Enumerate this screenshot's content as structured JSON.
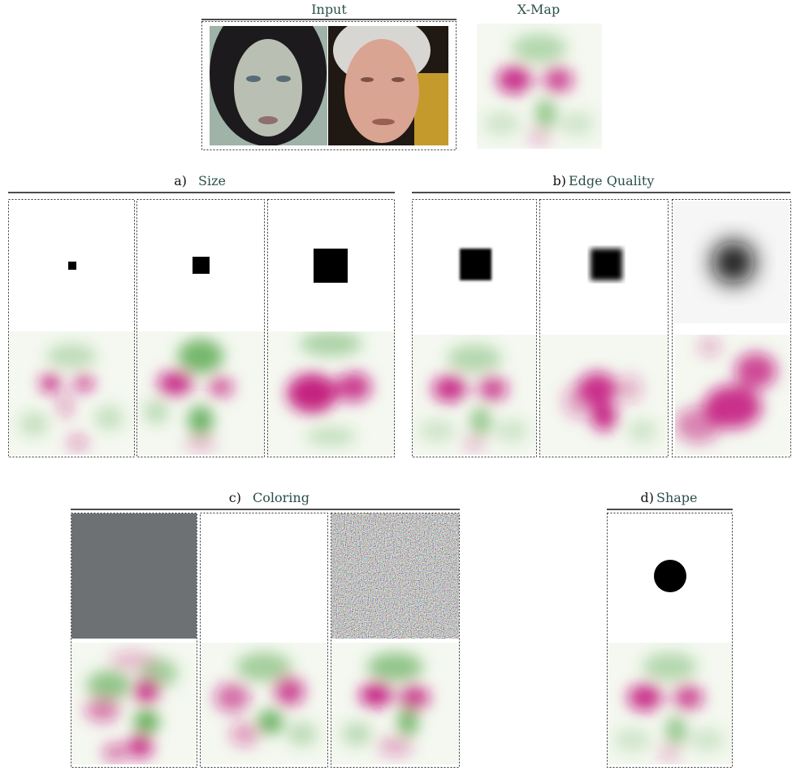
{
  "input": {
    "title": "Input"
  },
  "xmap": {
    "title": "X-Map"
  },
  "panels": [
    {
      "letter": "a)",
      "title": "Size"
    },
    {
      "letter": "b)",
      "title": "Edge Quality"
    },
    {
      "letter": "c)",
      "title": "Coloring"
    },
    {
      "letter": "d)",
      "title": "Shape"
    }
  ]
}
